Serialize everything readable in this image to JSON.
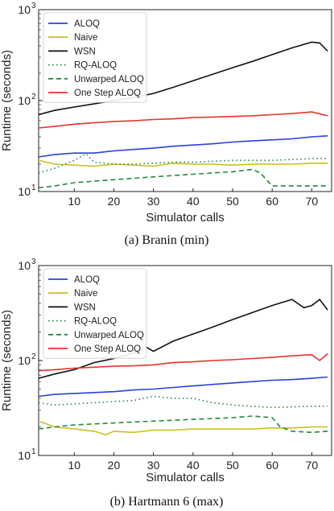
{
  "chart_data": [
    {
      "type": "line",
      "caption": "(a) Branin (min)",
      "xlabel": "Simulator calls",
      "ylabel": "Runtime (seconds)",
      "xlim": [
        1,
        75
      ],
      "ylim": [
        10,
        1000
      ],
      "yscale": "log",
      "xticks": [
        "10",
        "20",
        "30",
        "40",
        "50",
        "60",
        "70"
      ],
      "yticks": [
        "10",
        "10",
        "10"
      ],
      "ytick_exponents": [
        "1",
        "2",
        "3"
      ],
      "grid": false,
      "legend_position": "top-left",
      "series": [
        {
          "name": "ALOQ",
          "color": "#2b3fe0",
          "dash": "solid",
          "x": [
            1,
            5,
            10,
            15,
            20,
            25,
            30,
            35,
            40,
            45,
            50,
            55,
            60,
            65,
            70,
            74
          ],
          "y": [
            24,
            25.5,
            26.5,
            26.5,
            28,
            29,
            30,
            31.5,
            32.5,
            33.5,
            35,
            36,
            37,
            38,
            40,
            41
          ]
        },
        {
          "name": "Naive",
          "color": "#c8c01e",
          "dash": "solid",
          "x": [
            1,
            5,
            10,
            15,
            20,
            25,
            30,
            35,
            40,
            45,
            50,
            55,
            60,
            65,
            70,
            74
          ],
          "y": [
            22,
            20,
            19.5,
            19,
            20,
            19.5,
            19,
            20.5,
            20,
            20,
            19.5,
            20,
            20,
            20,
            20.5,
            20.5
          ]
        },
        {
          "name": "WSN",
          "color": "#111111",
          "dash": "solid",
          "x": [
            1,
            5,
            10,
            15,
            20,
            25,
            30,
            35,
            40,
            45,
            50,
            55,
            60,
            65,
            70,
            72,
            74
          ],
          "y": [
            70,
            78,
            85,
            92,
            100,
            108,
            120,
            140,
            165,
            195,
            230,
            270,
            320,
            380,
            440,
            430,
            350
          ]
        },
        {
          "name": "RQ-ALOQ",
          "color": "#1f8a3c",
          "dash": "dot",
          "x": [
            1,
            5,
            10,
            13,
            15,
            20,
            25,
            30,
            35,
            40,
            45,
            50,
            55,
            60,
            65,
            70,
            74
          ],
          "y": [
            16,
            18,
            22,
            26,
            21,
            20,
            20,
            20.5,
            21,
            21,
            21.5,
            22,
            22,
            22,
            22.5,
            23,
            23
          ]
        },
        {
          "name": "Unwarped ALOQ",
          "color": "#1f8a3c",
          "dash": "dash",
          "x": [
            1,
            5,
            10,
            15,
            20,
            25,
            30,
            35,
            40,
            45,
            50,
            55,
            57,
            60,
            65,
            70,
            74
          ],
          "y": [
            11,
            11.5,
            12.5,
            13,
            13.5,
            14,
            14.5,
            15,
            15.5,
            16,
            16.5,
            17.5,
            16,
            11.5,
            11.5,
            11.5,
            11.5
          ]
        },
        {
          "name": "One Step ALOQ",
          "color": "#e8312b",
          "dash": "solid",
          "x": [
            1,
            5,
            10,
            15,
            20,
            25,
            30,
            35,
            40,
            45,
            50,
            55,
            60,
            65,
            70,
            74
          ],
          "y": [
            50,
            52,
            55,
            57,
            59,
            60,
            62,
            63,
            65,
            66,
            67,
            68,
            70,
            72,
            75,
            68
          ]
        }
      ]
    },
    {
      "type": "line",
      "caption": "(b) Hartmann 6 (max)",
      "xlabel": "Simulator calls",
      "ylabel": "Runtime (seconds)",
      "xlim": [
        1,
        75
      ],
      "ylim": [
        10,
        1000
      ],
      "yscale": "log",
      "xticks": [
        "10",
        "20",
        "30",
        "40",
        "50",
        "60",
        "70"
      ],
      "yticks": [
        "10",
        "10",
        "10"
      ],
      "ytick_exponents": [
        "1",
        "2",
        "3"
      ],
      "grid": false,
      "legend_position": "top-left",
      "series": [
        {
          "name": "ALOQ",
          "color": "#2b3fe0",
          "dash": "solid",
          "x": [
            1,
            5,
            10,
            15,
            20,
            25,
            30,
            35,
            40,
            45,
            50,
            55,
            60,
            65,
            70,
            74
          ],
          "y": [
            42,
            44,
            45,
            46,
            47,
            49,
            50,
            52,
            54,
            56,
            58,
            60,
            62,
            63,
            65,
            67
          ]
        },
        {
          "name": "Naive",
          "color": "#c8c01e",
          "dash": "solid",
          "x": [
            1,
            5,
            10,
            15,
            18,
            20,
            25,
            30,
            35,
            40,
            45,
            50,
            55,
            60,
            65,
            70,
            74
          ],
          "y": [
            23,
            20,
            19,
            18,
            16.5,
            18,
            17.5,
            18.5,
            18.5,
            19,
            19,
            19,
            19,
            19.5,
            19.5,
            20,
            20
          ]
        },
        {
          "name": "WSN",
          "color": "#111111",
          "dash": "solid",
          "x": [
            1,
            5,
            10,
            15,
            20,
            25,
            28,
            30,
            35,
            40,
            45,
            50,
            55,
            60,
            65,
            68,
            70,
            72,
            74
          ],
          "y": [
            65,
            72,
            80,
            95,
            105,
            120,
            140,
            125,
            160,
            190,
            225,
            270,
            320,
            380,
            440,
            360,
            380,
            440,
            340
          ]
        },
        {
          "name": "RQ-ALOQ",
          "color": "#1f8a3c",
          "dash": "dot",
          "x": [
            1,
            5,
            10,
            15,
            20,
            25,
            30,
            35,
            40,
            45,
            50,
            55,
            60,
            65,
            70,
            74
          ],
          "y": [
            36,
            34,
            35,
            36,
            37,
            38,
            42,
            40,
            40,
            36,
            34,
            33,
            32,
            32.5,
            33,
            33
          ]
        },
        {
          "name": "Unwarped ALOQ",
          "color": "#1f8a3c",
          "dash": "dash",
          "x": [
            1,
            5,
            10,
            15,
            20,
            25,
            30,
            35,
            40,
            45,
            50,
            55,
            60,
            62,
            65,
            70,
            74
          ],
          "y": [
            19,
            20,
            21,
            21.5,
            22,
            22.5,
            23,
            23.5,
            24,
            24.5,
            25,
            26,
            25,
            20,
            18,
            17.5,
            18
          ]
        },
        {
          "name": "One Step ALOQ",
          "color": "#e8312b",
          "dash": "solid",
          "x": [
            1,
            5,
            10,
            15,
            20,
            25,
            30,
            35,
            40,
            45,
            50,
            55,
            60,
            65,
            70,
            72,
            74
          ],
          "y": [
            78,
            80,
            83,
            85,
            87,
            88,
            90,
            95,
            97,
            100,
            102,
            105,
            108,
            112,
            115,
            100,
            118
          ]
        }
      ]
    }
  ]
}
